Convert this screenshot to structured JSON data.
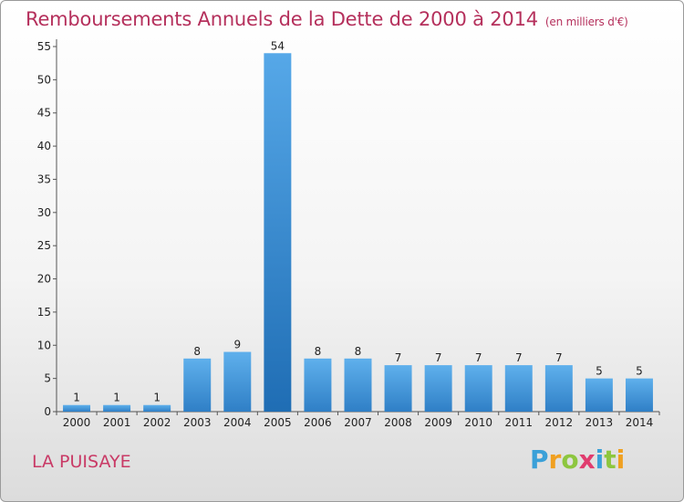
{
  "page": {
    "title": "Remboursements Annuels de la Dette de 2000 à 2014",
    "unit_note": "(en milliers d'€)",
    "town": "LA PUISAYE",
    "logo": {
      "text": "Proxiti",
      "letter_colors": [
        "#3aa0d8",
        "#f0a020",
        "#8dc63f",
        "#e03c6e",
        "#3aa0d8",
        "#8dc63f",
        "#f0a020"
      ]
    }
  },
  "chart_data": {
    "type": "bar",
    "title": "Remboursements Annuels de la Dette de 2000 à 2014",
    "xlabel": "",
    "ylabel": "",
    "categories": [
      "2000",
      "2001",
      "2002",
      "2003",
      "2004",
      "2005",
      "2006",
      "2007",
      "2008",
      "2009",
      "2010",
      "2011",
      "2012",
      "2013",
      "2014"
    ],
    "values": [
      1,
      1,
      1,
      8,
      9,
      54,
      8,
      8,
      7,
      7,
      7,
      7,
      7,
      5,
      5
    ],
    "ylim": [
      0,
      55
    ],
    "yticks": [
      0,
      5,
      10,
      15,
      20,
      25,
      30,
      35,
      40,
      45,
      50,
      55
    ],
    "grid": false,
    "bar_color": "#3a90d8",
    "axis_color": "#555555"
  }
}
